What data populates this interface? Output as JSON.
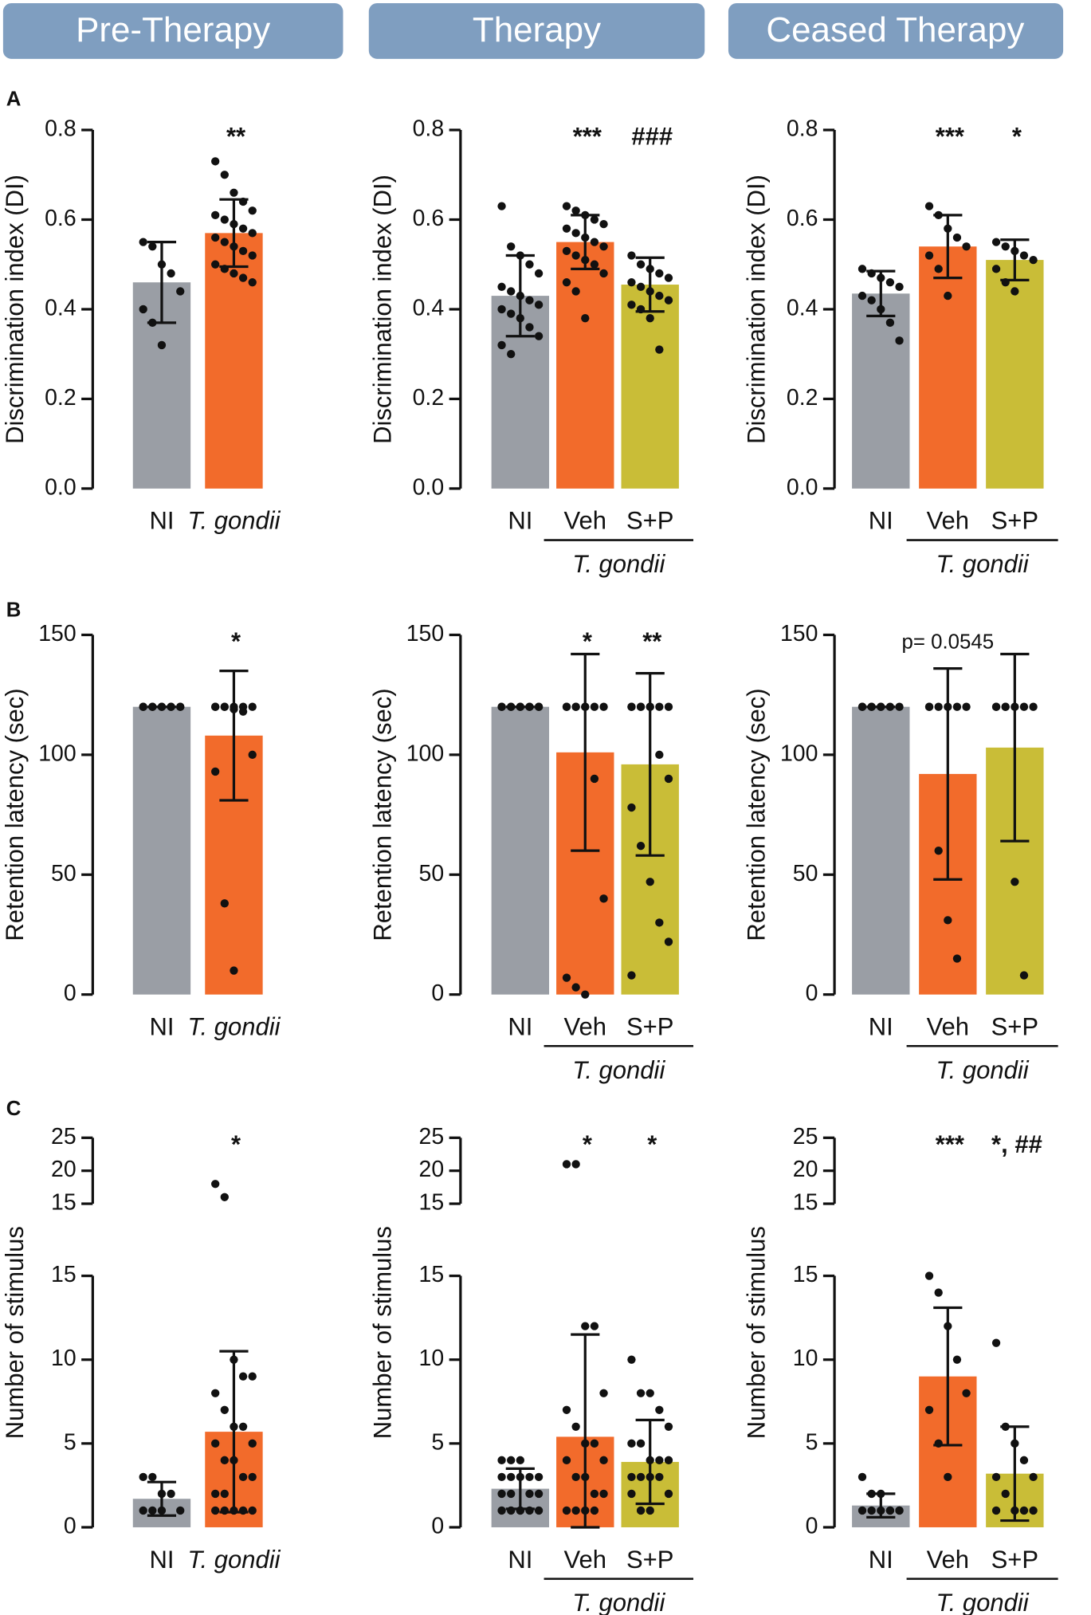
{
  "headers": [
    "Pre-Therapy",
    "Therapy",
    "Ceased Therapy"
  ],
  "panel_labels": [
    "A",
    "B",
    "C"
  ],
  "chart_data": [
    {
      "type": "bar",
      "ylabel": "Discrimination index (DI)",
      "categories": [
        "NI",
        "T. gondii"
      ],
      "values": [
        0.46,
        0.57
      ],
      "errors": [
        0.09,
        0.075
      ],
      "colors": [
        "#9a9ea5",
        "#f26b2b"
      ],
      "annotations": [
        null,
        "**"
      ],
      "ylim": [
        0,
        0.8
      ],
      "yticks": [
        {
          "value": 0,
          "label": "0.0"
        },
        0.2,
        0.4,
        0.6,
        0.8
      ],
      "points": [
        [
          0.55,
          0.54,
          0.5,
          0.48,
          0.44,
          0.4,
          0.37,
          0.32
        ],
        [
          0.73,
          0.7,
          0.66,
          0.64,
          0.62,
          0.61,
          0.6,
          0.59,
          0.58,
          0.57,
          0.56,
          0.55,
          0.54,
          0.53,
          0.52,
          0.5,
          0.49,
          0.48,
          0.47,
          0.46
        ]
      ]
    },
    {
      "type": "bar",
      "ylabel": "Discrimination index (DI)",
      "categories": [
        "NI",
        "Veh",
        "S+P"
      ],
      "group": "T. gondii",
      "values": [
        0.43,
        0.55,
        0.455
      ],
      "errors": [
        0.09,
        0.06,
        0.06
      ],
      "colors": [
        "#9a9ea5",
        "#f26b2b",
        "#c9bd37"
      ],
      "annotations": [
        null,
        "***",
        "###"
      ],
      "ylim": [
        0,
        0.8
      ],
      "yticks": [
        {
          "value": 0,
          "label": "0.0"
        },
        0.2,
        0.4,
        0.6,
        0.8
      ],
      "points": [
        [
          0.63,
          0.54,
          0.52,
          0.5,
          0.48,
          0.45,
          0.44,
          0.43,
          0.42,
          0.41,
          0.4,
          0.39,
          0.38,
          0.36,
          0.34,
          0.32,
          0.3
        ],
        [
          0.63,
          0.62,
          0.61,
          0.6,
          0.59,
          0.58,
          0.57,
          0.56,
          0.55,
          0.54,
          0.53,
          0.52,
          0.51,
          0.5,
          0.48,
          0.46,
          0.44,
          0.38
        ],
        [
          0.52,
          0.5,
          0.49,
          0.48,
          0.47,
          0.46,
          0.45,
          0.44,
          0.43,
          0.42,
          0.41,
          0.4,
          0.38,
          0.31
        ]
      ]
    },
    {
      "type": "bar",
      "ylabel": "Discrimination index (DI)",
      "categories": [
        "NI",
        "Veh",
        "S+P"
      ],
      "group": "T. gondii",
      "values": [
        0.435,
        0.54,
        0.51
      ],
      "errors": [
        0.05,
        0.07,
        0.045
      ],
      "colors": [
        "#9a9ea5",
        "#f26b2b",
        "#c9bd37"
      ],
      "annotations": [
        null,
        "***",
        "*"
      ],
      "ylim": [
        0,
        0.8
      ],
      "yticks": [
        {
          "value": 0,
          "label": "0.0"
        },
        0.2,
        0.4,
        0.6,
        0.8
      ],
      "points": [
        [
          0.49,
          0.48,
          0.47,
          0.46,
          0.45,
          0.43,
          0.42,
          0.4,
          0.37,
          0.33
        ],
        [
          0.63,
          0.61,
          0.58,
          0.56,
          0.54,
          0.52,
          0.49,
          0.43
        ],
        [
          0.55,
          0.54,
          0.53,
          0.52,
          0.51,
          0.49,
          0.46,
          0.44
        ]
      ]
    },
    {
      "type": "bar",
      "ylabel": "Retention latency (sec)",
      "categories": [
        "NI",
        "T. gondii"
      ],
      "values": [
        120,
        108
      ],
      "errors": [
        0,
        27
      ],
      "colors": [
        "#9a9ea5",
        "#f26b2b"
      ],
      "annotations": [
        null,
        "*"
      ],
      "ylim": [
        0,
        150
      ],
      "yticks": [
        0,
        50,
        100,
        150
      ],
      "points": [
        [
          120,
          120,
          120,
          120,
          120,
          120,
          120,
          120,
          120,
          120
        ],
        [
          120,
          120,
          120,
          120,
          120,
          120,
          120,
          119,
          118,
          100,
          93,
          38,
          10
        ]
      ]
    },
    {
      "type": "bar",
      "ylabel": "Retention latency (sec)",
      "categories": [
        "NI",
        "Veh",
        "S+P"
      ],
      "group": "T. gondii",
      "values": [
        120,
        101,
        96
      ],
      "errors": [
        0,
        41,
        38
      ],
      "colors": [
        "#9a9ea5",
        "#f26b2b",
        "#c9bd37"
      ],
      "annotations": [
        null,
        "*",
        "**"
      ],
      "ylim": [
        0,
        150
      ],
      "yticks": [
        0,
        50,
        100,
        150
      ],
      "points": [
        [
          120,
          120,
          120,
          120,
          120,
          120,
          120,
          120,
          120,
          120
        ],
        [
          120,
          120,
          120,
          120,
          120,
          120,
          120,
          120,
          90,
          40,
          7,
          3,
          0
        ],
        [
          120,
          120,
          120,
          120,
          120,
          120,
          120,
          120,
          100,
          90,
          78,
          62,
          47,
          30,
          22,
          8
        ]
      ]
    },
    {
      "type": "bar",
      "ylabel": "Retention latency (sec)",
      "categories": [
        "NI",
        "Veh",
        "S+P"
      ],
      "group": "T. gondii",
      "values": [
        120,
        92,
        103
      ],
      "errors": [
        0,
        44,
        39
      ],
      "colors": [
        "#9a9ea5",
        "#f26b2b",
        "#c9bd37"
      ],
      "annotations": [
        null,
        "p= 0.0545",
        null
      ],
      "ylim": [
        0,
        150
      ],
      "yticks": [
        0,
        50,
        100,
        150
      ],
      "points": [
        [
          120,
          120,
          120,
          120,
          120,
          120,
          120,
          120
        ],
        [
          120,
          120,
          120,
          120,
          120,
          120,
          60,
          31,
          15
        ],
        [
          120,
          120,
          120,
          120,
          120,
          120,
          120,
          47,
          8
        ]
      ]
    },
    {
      "type": "bar",
      "ylabel": "Number of stimulus",
      "categories": [
        "NI",
        "T. gondii"
      ],
      "values": [
        1.7,
        5.7
      ],
      "errors": [
        1.0,
        4.8
      ],
      "colors": [
        "#9a9ea5",
        "#f26b2b"
      ],
      "annotations": [
        null,
        "*"
      ],
      "ysegments": [
        {
          "ylim": [
            0,
            15
          ],
          "yticks": [
            0,
            5,
            10,
            15
          ]
        },
        {
          "ylim": [
            15,
            25
          ],
          "yticks": [
            15,
            20,
            25
          ]
        }
      ],
      "points": [
        [
          3,
          3,
          2,
          2,
          1,
          1,
          1,
          1
        ],
        [
          18,
          16,
          10,
          9,
          9,
          8,
          7,
          6,
          6,
          5,
          5,
          4,
          4,
          3,
          3,
          2,
          2,
          1,
          1,
          1,
          1,
          1
        ]
      ]
    },
    {
      "type": "bar",
      "ylabel": "Number of stimulus",
      "categories": [
        "NI",
        "Veh",
        "S+P"
      ],
      "group": "T. gondii",
      "values": [
        2.3,
        5.4,
        3.9
      ],
      "errors": [
        1.2,
        6.1,
        2.5
      ],
      "colors": [
        "#9a9ea5",
        "#f26b2b",
        "#c9bd37"
      ],
      "annotations": [
        null,
        "*",
        "*"
      ],
      "ysegments": [
        {
          "ylim": [
            0,
            15
          ],
          "yticks": [
            0,
            5,
            10,
            15
          ]
        },
        {
          "ylim": [
            15,
            25
          ],
          "yticks": [
            15,
            20,
            25
          ]
        }
      ],
      "points": [
        [
          4,
          4,
          4,
          3,
          3,
          3,
          3,
          3,
          2,
          2,
          2,
          2,
          1,
          1,
          1,
          1,
          1,
          1
        ],
        [
          21,
          21,
          12,
          12,
          8,
          7,
          6,
          5,
          5,
          4,
          4,
          3,
          3,
          2,
          2,
          1,
          1,
          1,
          1
        ],
        [
          10,
          8,
          8,
          7,
          6,
          5,
          5,
          4,
          4,
          4,
          3,
          3,
          3,
          3,
          2,
          2,
          1,
          1
        ]
      ]
    },
    {
      "type": "bar",
      "ylabel": "Number of stimulus",
      "categories": [
        "NI",
        "Veh",
        "S+P"
      ],
      "group": "T. gondii",
      "values": [
        1.3,
        9.0,
        3.2
      ],
      "errors": [
        0.7,
        4.1,
        2.8
      ],
      "colors": [
        "#9a9ea5",
        "#f26b2b",
        "#c9bd37"
      ],
      "annotations": [
        null,
        "***",
        "*, ##"
      ],
      "ysegments": [
        {
          "ylim": [
            0,
            15
          ],
          "yticks": [
            0,
            5,
            10,
            15
          ]
        },
        {
          "ylim": [
            15,
            25
          ],
          "yticks": [
            15,
            20,
            25
          ]
        }
      ],
      "points": [
        [
          3,
          2,
          2,
          1,
          1,
          1,
          1,
          1,
          1,
          1
        ],
        [
          15,
          14,
          12,
          10,
          8,
          7,
          5,
          3
        ],
        [
          11,
          6,
          5,
          4,
          3,
          3,
          2,
          1,
          1,
          1,
          1
        ]
      ]
    }
  ]
}
